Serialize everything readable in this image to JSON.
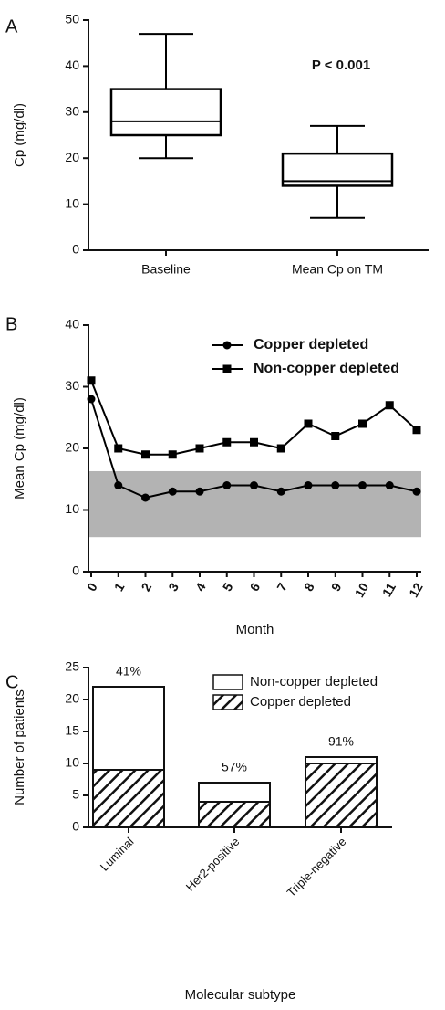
{
  "chart_data": [
    {
      "type": "box",
      "panel": "A",
      "ylabel": "Cp (mg/dl)",
      "annotation": "P < 0.001",
      "categories": [
        "Baseline",
        "Mean Cp on TM"
      ],
      "min": [
        20,
        7
      ],
      "q1": [
        25,
        14
      ],
      "median": [
        28,
        15
      ],
      "q3": [
        35,
        21
      ],
      "max": [
        47,
        27
      ],
      "color": "#000000",
      "ylim": [
        0,
        50
      ],
      "yticks": [
        0,
        10,
        20,
        30,
        40,
        50
      ]
    },
    {
      "type": "line",
      "panel": "B",
      "ylabel": "Mean Cp (mg/dl)",
      "xlabel": "Month",
      "x": [
        0,
        1,
        2,
        3,
        4,
        5,
        6,
        7,
        8,
        9,
        10,
        11,
        12
      ],
      "series": [
        {
          "name": "Copper depleted",
          "color": "#000000",
          "marker": "circle",
          "values": [
            28,
            14,
            12,
            13,
            13,
            14,
            14,
            13,
            14,
            14,
            14,
            14,
            13
          ]
        },
        {
          "name": "Non-copper depleted",
          "color": "#000000",
          "marker": "square",
          "values": [
            31,
            20,
            19,
            19,
            20,
            21,
            21,
            20,
            24,
            22,
            24,
            27,
            23
          ]
        }
      ],
      "shaded_range": [
        5.6,
        16.3
      ],
      "shade_color": "#b3b3b3",
      "xlim": [
        0,
        12
      ],
      "xticks": [
        0,
        1,
        2,
        3,
        4,
        5,
        6,
        7,
        8,
        9,
        10,
        11,
        12
      ],
      "ylim": [
        0,
        40
      ],
      "yticks": [
        0,
        10,
        20,
        30,
        40
      ],
      "legend": "upper right"
    },
    {
      "type": "stacked_bar",
      "panel": "C",
      "ylabel": "Number of patients",
      "xlabel": "Molecular subtype",
      "categories": [
        "Luminal",
        "Her2-positive",
        "Triple-negative"
      ],
      "series": [
        {
          "name": "Copper depleted",
          "color": "#ffffff",
          "hatch": true,
          "values": [
            9,
            4,
            10
          ]
        },
        {
          "name": "Non-copper depleted",
          "color": "#ffffff",
          "hatch": false,
          "values": [
            13,
            3,
            1
          ]
        }
      ],
      "percent_labels": [
        "41%",
        "57%",
        "91%"
      ],
      "ylim": [
        0,
        25
      ],
      "yticks": [
        0,
        5,
        10,
        15,
        20,
        25
      ],
      "legend": "upper right"
    }
  ]
}
